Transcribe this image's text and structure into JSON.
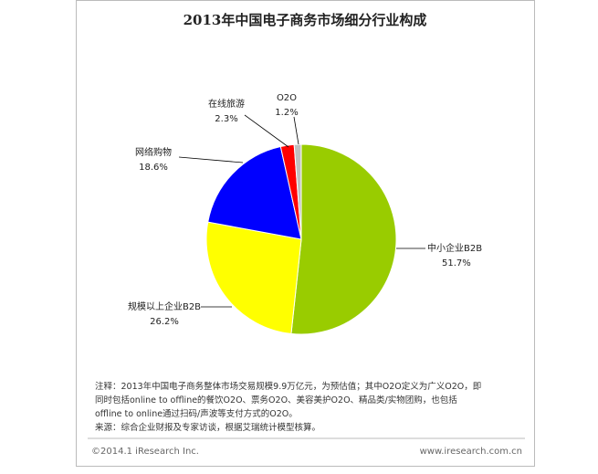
{
  "chart_data": {
    "type": "pie",
    "title": "2013年中国电子商务市场细分行业构成",
    "categories": [
      "中小企业B2B",
      "规模以上企业B2B",
      "网络购物",
      "在线旅游",
      "O2O"
    ],
    "values": [
      51.7,
      26.2,
      18.6,
      2.3,
      1.2
    ],
    "value_labels": [
      "51.7%",
      "26.2%",
      "18.6%",
      "2.3%",
      "1.2%"
    ],
    "colors": [
      "#99cc00",
      "#ffff00",
      "#0000ff",
      "#ff0000",
      "#c0c0c0"
    ],
    "notes": [
      "注释：2013年中国电子商务整体市场交易规模9.9万亿元，为预估值；其中O2O定义为广义O2O，即",
      "同时包括online to offline的餐饮O2O、票务O2O、美容美护O2O、精品类/实物团购，也包括",
      "offline to online通过扫码/声波等支付方式的O2O。",
      "来源：综合企业财报及专家访谈，根据艾瑞统计模型核算。"
    ],
    "copyright": "©2014.1 iResearch Inc.",
    "website": "www.iresearch.com.cn"
  }
}
